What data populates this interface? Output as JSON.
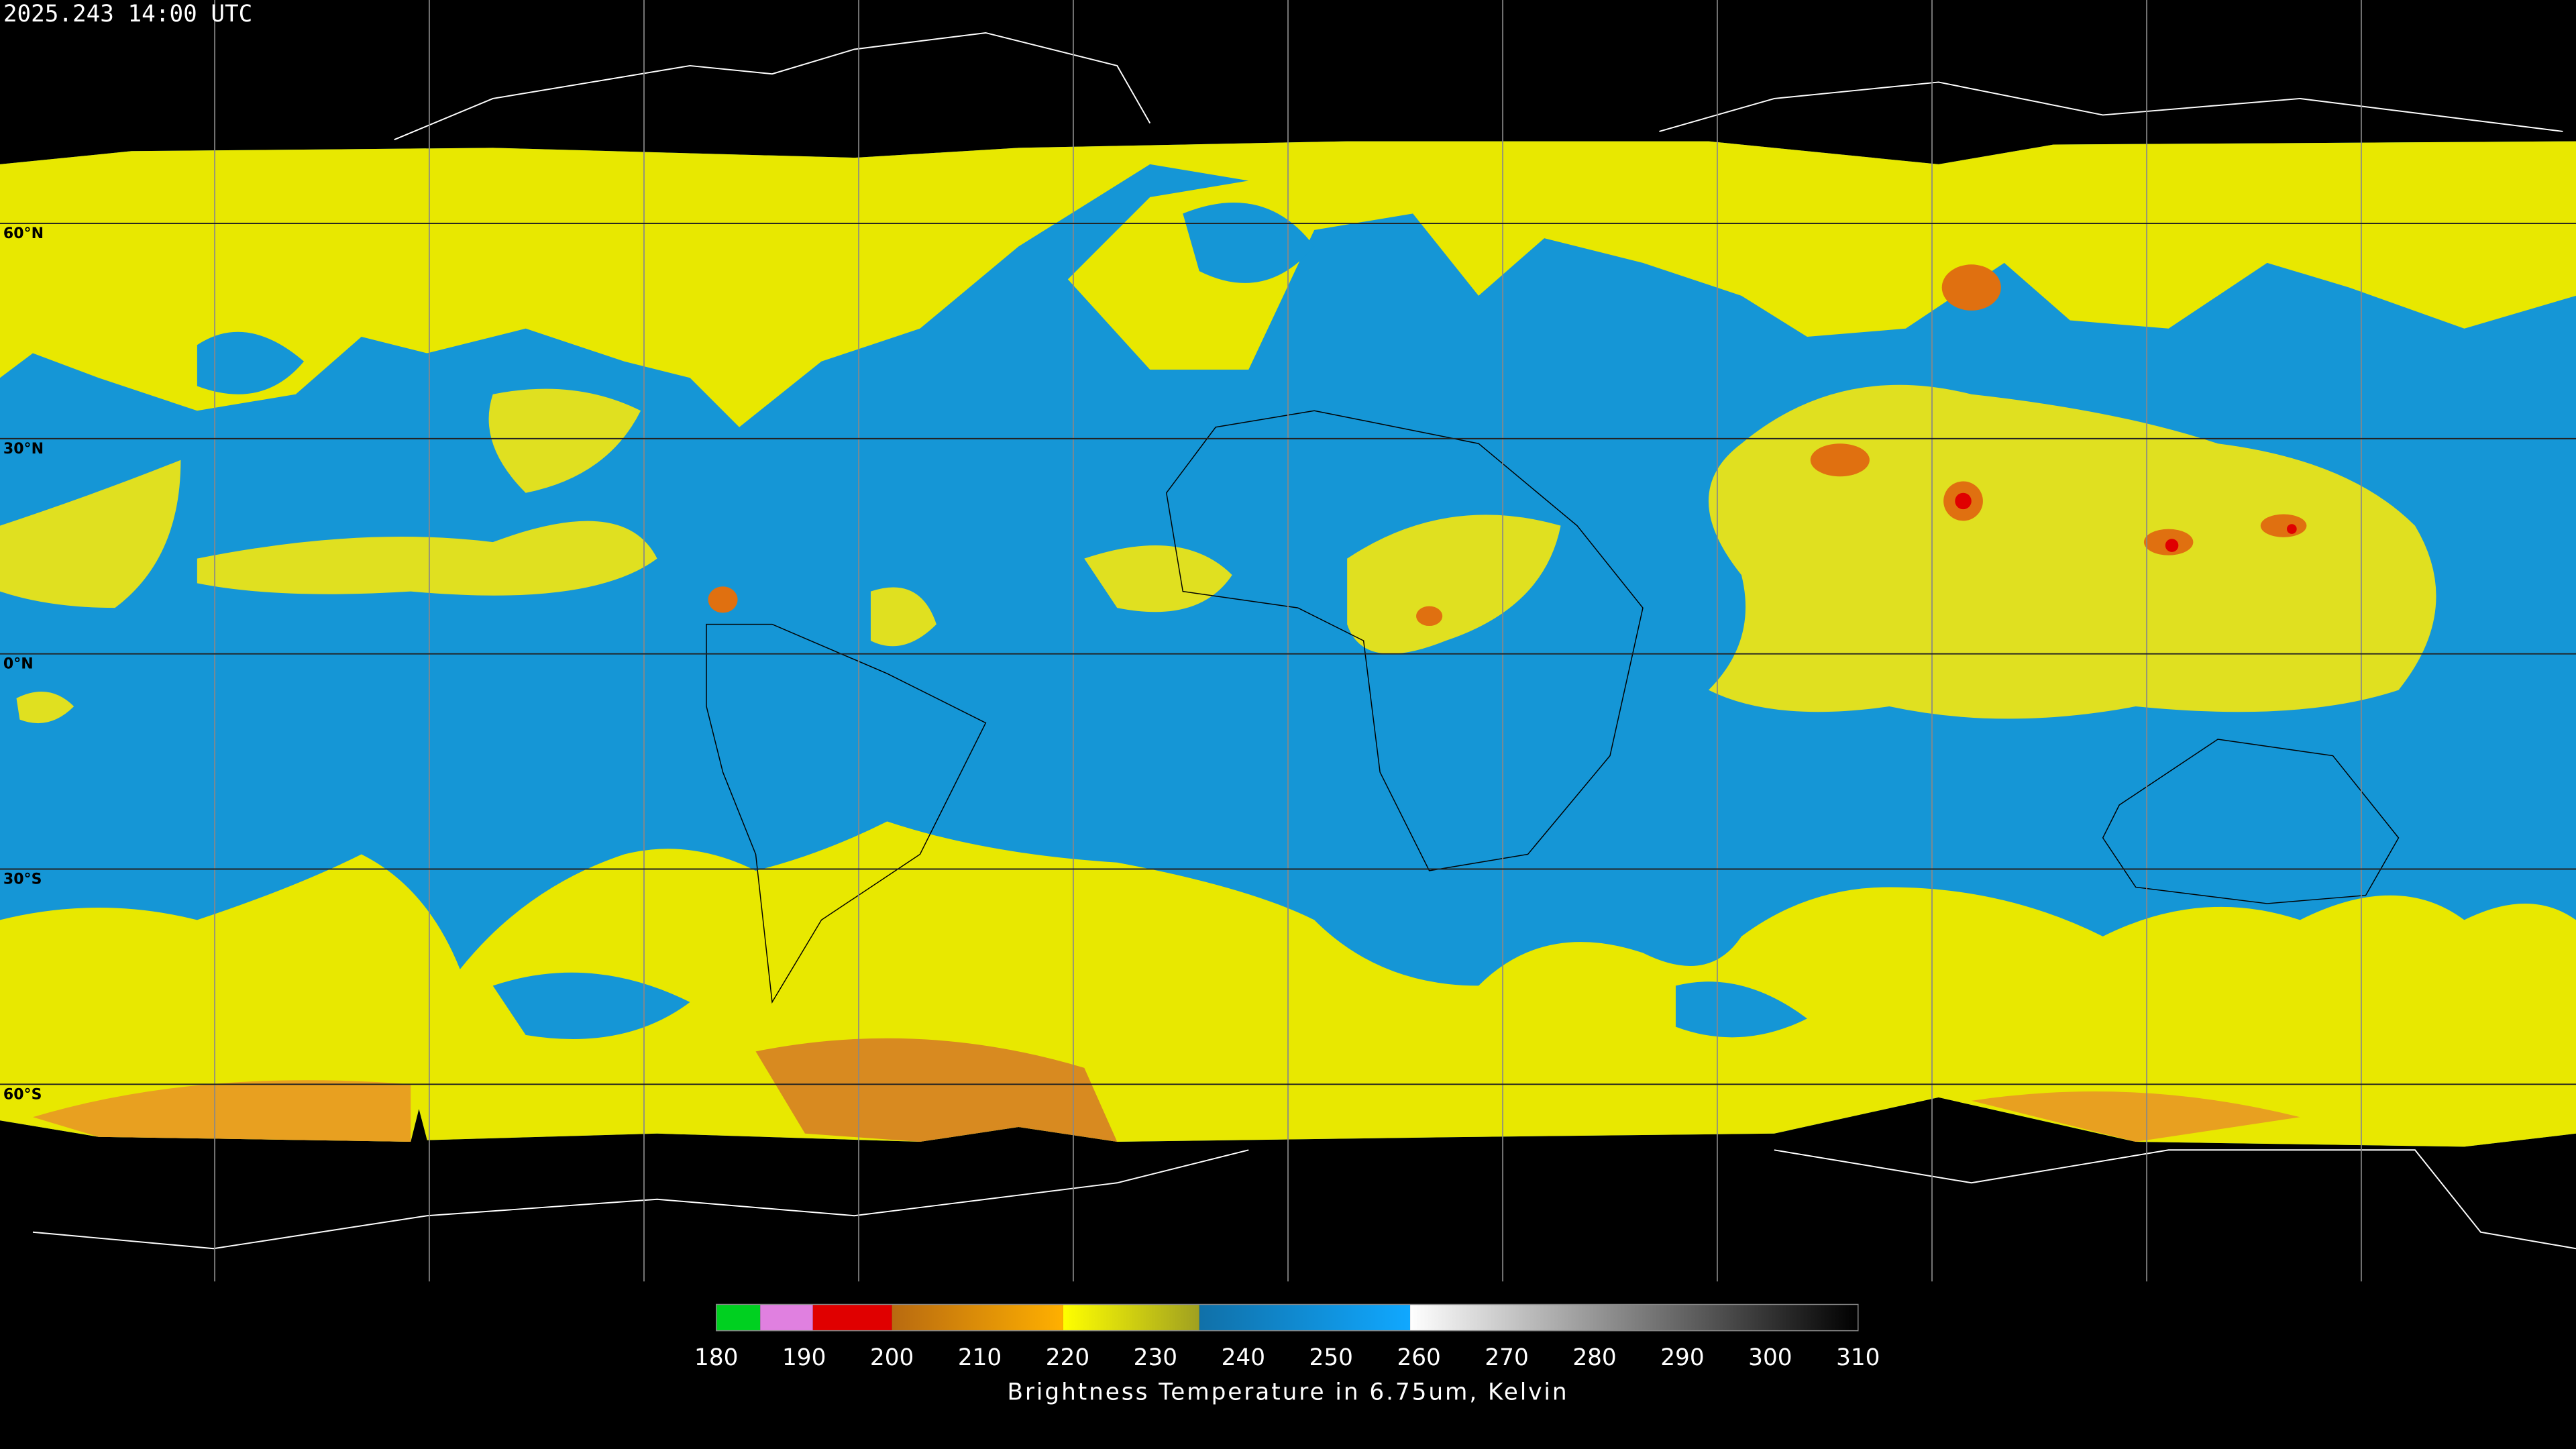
{
  "header": {
    "timestamp": "2025.243 14:00 UTC"
  },
  "map": {
    "latitude_lines": [
      {
        "value": 60,
        "label": "60°N"
      },
      {
        "value": 30,
        "label": "30°N"
      },
      {
        "value": 0,
        "label": "0°N"
      },
      {
        "value": -30,
        "label": "30°S"
      },
      {
        "value": -60,
        "label": "60°S"
      }
    ]
  },
  "colorbar": {
    "title": "Brightness Temperature in 6.75um, Kelvin",
    "range": [
      180,
      310
    ],
    "ticks": [
      180,
      190,
      200,
      210,
      220,
      230,
      240,
      250,
      260,
      270,
      280,
      290,
      300,
      310
    ],
    "segments": [
      {
        "from": 180,
        "to": 185,
        "colors": [
          "#00d020",
          "#00d020"
        ]
      },
      {
        "from": 185,
        "to": 191,
        "colors": [
          "#e080e0",
          "#e080e0"
        ]
      },
      {
        "from": 191,
        "to": 200,
        "colors": [
          "#e00000",
          "#e00000"
        ]
      },
      {
        "from": 200,
        "to": 219.5,
        "colors": [
          "#b86a10",
          "#ffb000"
        ]
      },
      {
        "from": 219.5,
        "to": 235,
        "colors": [
          "#ffff00",
          "#a0a020"
        ]
      },
      {
        "from": 235,
        "to": 259,
        "colors": [
          "#1070a8",
          "#10a8ff"
        ]
      },
      {
        "from": 259,
        "to": 310,
        "colors": [
          "#ffffff",
          "#000000"
        ]
      }
    ]
  }
}
